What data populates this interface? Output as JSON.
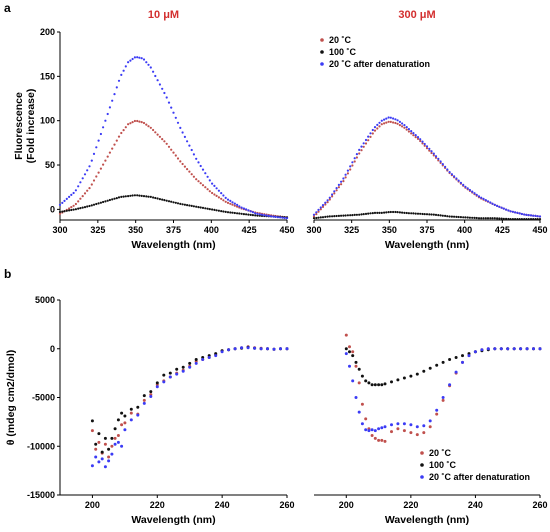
{
  "panel_labels": {
    "a": "a",
    "b": "b"
  },
  "colors": {
    "20C": "#c0504d",
    "100C": "#111111",
    "20C_after": "#3b3bf5",
    "concentration": "#d32f2f"
  },
  "chart_data": [
    {
      "id": "fluor-10uM",
      "type": "scatter",
      "title": "10 μM",
      "xlabel": "Wavelength (nm)",
      "ylabel_lines": [
        "Fluorescence",
        "(Fold increase)"
      ],
      "xlim": [
        300,
        450
      ],
      "ylim": [
        -12,
        200
      ],
      "xticks": [
        300,
        325,
        350,
        375,
        400,
        425,
        450
      ],
      "yticks": [
        0,
        50,
        100,
        150,
        200
      ],
      "series": [
        {
          "key": "20C",
          "x": [
            300,
            310,
            320,
            330,
            340,
            345,
            350,
            355,
            360,
            370,
            380,
            390,
            400,
            410,
            420,
            430,
            440,
            450
          ],
          "y": [
            -5,
            5,
            25,
            55,
            85,
            96,
            100,
            98,
            92,
            75,
            53,
            34,
            19,
            8,
            1,
            -4,
            -7,
            -9
          ]
        },
        {
          "key": "100C",
          "x": [
            300,
            310,
            320,
            330,
            340,
            345,
            350,
            355,
            360,
            370,
            380,
            390,
            400,
            410,
            420,
            430,
            440,
            450
          ],
          "y": [
            -3,
            0,
            4,
            9,
            14,
            15,
            16,
            15,
            14,
            10,
            6,
            3,
            0,
            -3,
            -5,
            -7,
            -8,
            -9
          ]
        },
        {
          "key": "20C_after",
          "x": [
            300,
            310,
            320,
            330,
            340,
            345,
            350,
            355,
            360,
            370,
            380,
            390,
            400,
            410,
            420,
            430,
            440,
            450
          ],
          "y": [
            5,
            20,
            50,
            100,
            150,
            166,
            172,
            170,
            160,
            128,
            90,
            57,
            30,
            12,
            2,
            -5,
            -8,
            -10
          ]
        }
      ]
    },
    {
      "id": "fluor-300uM",
      "type": "scatter",
      "title": "300 μM",
      "xlabel": "Wavelength (nm)",
      "xlim": [
        300,
        450
      ],
      "ylim": [
        -12,
        200
      ],
      "xticks": [
        300,
        325,
        350,
        375,
        400,
        425,
        450
      ],
      "legend": {
        "position": "top-right",
        "entries": [
          "20C",
          "100C",
          "20C_after"
        ]
      },
      "series": [
        {
          "key": "20C",
          "x": [
            300,
            310,
            320,
            330,
            340,
            345,
            350,
            355,
            360,
            370,
            380,
            390,
            400,
            410,
            420,
            430,
            440,
            450
          ],
          "y": [
            -8,
            10,
            33,
            63,
            88,
            96,
            99,
            97,
            92,
            78,
            60,
            41,
            25,
            13,
            5,
            -2,
            -6,
            -8
          ]
        },
        {
          "key": "100C",
          "x": [
            300,
            310,
            320,
            330,
            340,
            345,
            350,
            355,
            360,
            370,
            380,
            390,
            400,
            410,
            420,
            430,
            440,
            450
          ],
          "y": [
            -10,
            -8,
            -7,
            -6,
            -4,
            -4,
            -3,
            -3,
            -4,
            -5,
            -6,
            -8,
            -9,
            -10,
            -10,
            -11,
            -11,
            -11
          ]
        },
        {
          "key": "20C_after",
          "x": [
            300,
            310,
            320,
            330,
            340,
            345,
            350,
            355,
            360,
            370,
            380,
            390,
            400,
            410,
            420,
            430,
            440,
            450
          ],
          "y": [
            -6,
            12,
            36,
            67,
            92,
            100,
            104,
            101,
            95,
            80,
            62,
            42,
            26,
            14,
            5,
            -2,
            -6,
            -8
          ]
        }
      ]
    },
    {
      "id": "cd-10uM",
      "type": "scatter",
      "xlabel": "Wavelength (nm)",
      "ylabel": "θ (mdeg cm2/dmol)",
      "xlim": [
        190,
        260
      ],
      "ylim": [
        -15000,
        5000
      ],
      "xticks": [
        200,
        220,
        240,
        260
      ],
      "yticks": [
        5000,
        0,
        -5000,
        -10000,
        -15000
      ],
      "series": [
        {
          "key": "20C",
          "x": [
            200,
            201,
            202,
            203,
            204,
            205,
            206,
            207,
            208,
            209,
            210,
            212,
            214,
            216,
            218,
            220,
            222,
            224,
            226,
            228,
            230,
            232,
            234,
            236,
            238,
            240,
            242,
            244,
            246,
            248,
            250,
            252,
            254,
            256,
            258,
            260
          ],
          "y": [
            -8400,
            -10300,
            -9600,
            -10700,
            -9800,
            -11100,
            -10000,
            -9200,
            -8900,
            -7800,
            -7600,
            -6600,
            -6700,
            -5300,
            -4700,
            -3700,
            -3300,
            -2900,
            -2500,
            -2200,
            -1800,
            -1300,
            -1100,
            -900,
            -600,
            -200,
            -100,
            0,
            100,
            200,
            100,
            50,
            0,
            -50,
            0,
            0
          ]
        },
        {
          "key": "100C",
          "x": [
            200,
            201,
            202,
            203,
            204,
            205,
            206,
            207,
            208,
            209,
            210,
            212,
            214,
            216,
            218,
            220,
            222,
            224,
            226,
            228,
            230,
            232,
            234,
            236,
            238,
            240,
            242,
            244,
            246,
            248,
            250,
            252,
            254,
            256,
            258,
            260
          ],
          "y": [
            -7400,
            -9800,
            -8700,
            -10600,
            -9200,
            -10300,
            -9200,
            -8200,
            -7300,
            -6600,
            -6900,
            -6200,
            -6000,
            -4800,
            -4400,
            -3500,
            -2700,
            -2500,
            -2100,
            -1900,
            -1500,
            -1100,
            -900,
            -700,
            -500,
            -200,
            -100,
            0,
            50,
            150,
            50,
            0,
            0,
            -50,
            0,
            0
          ]
        },
        {
          "key": "20C_after",
          "x": [
            200,
            201,
            202,
            203,
            204,
            205,
            206,
            207,
            208,
            209,
            210,
            212,
            214,
            216,
            218,
            220,
            222,
            224,
            226,
            228,
            230,
            232,
            234,
            236,
            238,
            240,
            242,
            244,
            246,
            248,
            250,
            252,
            254,
            256,
            258,
            260
          ],
          "y": [
            -12000,
            -11100,
            -11600,
            -11300,
            -12100,
            -11500,
            -10800,
            -9800,
            -9600,
            -10000,
            -8300,
            -7300,
            -6800,
            -5600,
            -4900,
            -3900,
            -3400,
            -2900,
            -2600,
            -2300,
            -1900,
            -1500,
            -1100,
            -900,
            -700,
            -300,
            -100,
            0,
            100,
            100,
            50,
            0,
            0,
            -50,
            0,
            0
          ]
        }
      ]
    },
    {
      "id": "cd-300uM",
      "type": "scatter",
      "xlabel": "Wavelength (nm)",
      "xlim": [
        190,
        260
      ],
      "ylim": [
        -15000,
        5000
      ],
      "xticks": [
        200,
        220,
        240,
        260
      ],
      "legend": {
        "position": "bottom-right",
        "entries": [
          "20C",
          "100C",
          "20C_after"
        ]
      },
      "series": [
        {
          "key": "20C",
          "x": [
            200,
            201,
            202,
            203,
            204,
            205,
            206,
            207,
            208,
            209,
            210,
            211,
            212,
            214,
            216,
            218,
            220,
            222,
            224,
            226,
            228,
            230,
            232,
            234,
            236,
            238,
            240,
            242,
            244,
            246,
            248,
            250,
            252,
            254,
            256,
            258,
            260
          ],
          "y": [
            1400,
            200,
            -300,
            -1800,
            -3500,
            -5700,
            -7200,
            -8200,
            -8900,
            -9200,
            -9400,
            -9400,
            -9500,
            -8500,
            -8200,
            -8400,
            -8600,
            -8800,
            -8600,
            -8000,
            -6700,
            -5300,
            -3800,
            -2500,
            -1400,
            -700,
            -300,
            -100,
            0,
            0,
            0,
            0,
            0,
            0,
            0,
            0,
            0
          ]
        },
        {
          "key": "100C",
          "x": [
            200,
            201,
            202,
            203,
            204,
            205,
            206,
            207,
            208,
            209,
            210,
            211,
            212,
            214,
            216,
            218,
            220,
            222,
            224,
            226,
            228,
            230,
            232,
            234,
            236,
            238,
            240,
            242,
            244,
            246,
            248,
            250,
            252,
            254,
            256,
            258,
            260
          ],
          "y": [
            0,
            -300,
            -700,
            -1400,
            -2100,
            -2800,
            -3300,
            -3500,
            -3700,
            -3700,
            -3700,
            -3700,
            -3600,
            -3400,
            -3200,
            -3000,
            -2800,
            -2600,
            -2300,
            -2000,
            -1700,
            -1400,
            -1100,
            -900,
            -700,
            -500,
            -300,
            -200,
            -100,
            0,
            0,
            0,
            0,
            0,
            0,
            0,
            0
          ]
        },
        {
          "key": "20C_after",
          "x": [
            200,
            201,
            202,
            203,
            204,
            205,
            206,
            207,
            208,
            209,
            210,
            211,
            212,
            214,
            216,
            218,
            220,
            222,
            224,
            226,
            228,
            230,
            232,
            234,
            236,
            238,
            240,
            242,
            244,
            246,
            248,
            250,
            252,
            254,
            256,
            258,
            260
          ],
          "y": [
            -500,
            -1800,
            -3300,
            -5000,
            -6500,
            -7700,
            -8300,
            -8400,
            -8300,
            -8400,
            -8200,
            -8100,
            -8000,
            -7800,
            -7700,
            -7700,
            -7800,
            -8000,
            -7900,
            -7400,
            -6300,
            -5000,
            -3700,
            -2400,
            -1400,
            -700,
            -300,
            -100,
            0,
            0,
            0,
            0,
            0,
            0,
            0,
            0,
            0
          ]
        }
      ]
    }
  ],
  "legend_labels": {
    "20C": "20 ˚C",
    "100C": "100 ˚C",
    "20C_after": "20 ˚C after denaturation"
  }
}
